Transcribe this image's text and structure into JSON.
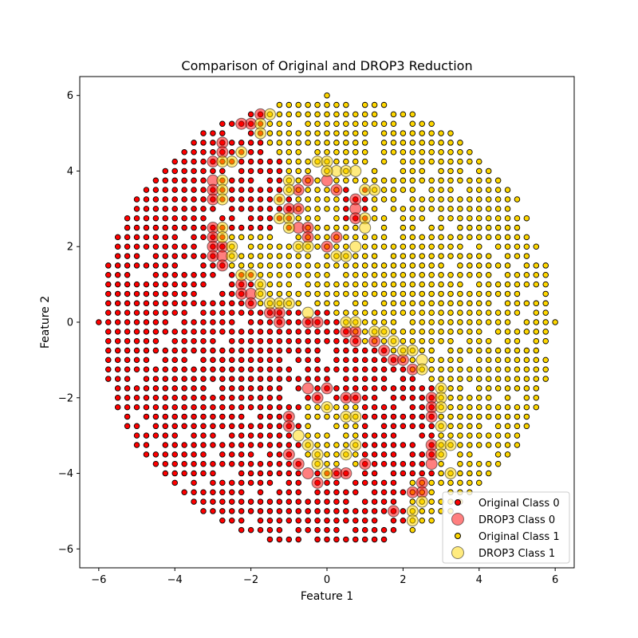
{
  "chart_data": {
    "type": "scatter",
    "title": "Comparison of Original and DROP3 Reduction",
    "xlabel": "Feature 1",
    "ylabel": "Feature 2",
    "xlim": [
      -6.5,
      6.5
    ],
    "ylim": [
      -6.5,
      6.5
    ],
    "xticks": [
      -6,
      -4,
      -2,
      0,
      2,
      4,
      6
    ],
    "yticks": [
      -6,
      -4,
      -2,
      0,
      2,
      4,
      6
    ],
    "grid": false,
    "legend_position": "lower right",
    "grid_step": 0.25,
    "region_radius": 6,
    "series": [
      {
        "name": "Original Class 0",
        "color": "#ff0000",
        "marker": "small circle",
        "class": 0,
        "role": "original"
      },
      {
        "name": "DROP3 Class 0",
        "color": "#ff0000",
        "alpha": 0.5,
        "marker": "large circle",
        "class": 0,
        "role": "drop3"
      },
      {
        "name": "Original Class 1",
        "color": "#ffd700",
        "marker": "small circle",
        "class": 1,
        "role": "original"
      },
      {
        "name": "DROP3 Class 1",
        "color": "#ffd700",
        "alpha": 0.5,
        "marker": "large circle",
        "class": 1,
        "role": "drop3"
      }
    ],
    "drop3_class0_points": [
      [
        -1.75,
        5.5
      ],
      [
        -2,
        5.25
      ],
      [
        -2.25,
        5.25
      ],
      [
        -2.75,
        4.75
      ],
      [
        -2.75,
        4.5
      ],
      [
        -3,
        4.25
      ],
      [
        -3,
        3.75
      ],
      [
        -3,
        3.5
      ],
      [
        -3,
        3.25
      ],
      [
        -0.5,
        3.75
      ],
      [
        -0.75,
        3.5
      ],
      [
        0,
        3.75
      ],
      [
        0.25,
        3.5
      ],
      [
        0.75,
        3.25
      ],
      [
        0.75,
        3.0
      ],
      [
        -1,
        3.0
      ],
      [
        -0.75,
        3.0
      ],
      [
        -0.75,
        2.5
      ],
      [
        -0.5,
        2.5
      ],
      [
        -0.5,
        2.25
      ],
      [
        0.75,
        2.75
      ],
      [
        0.25,
        2.25
      ],
      [
        0,
        2.0
      ],
      [
        -3,
        2.5
      ],
      [
        -3,
        2.25
      ],
      [
        -3,
        2.0
      ],
      [
        -3,
        1.75
      ],
      [
        -2.75,
        2.0
      ],
      [
        -2.75,
        1.75
      ],
      [
        -2.75,
        1.5
      ],
      [
        -2.25,
        1.0
      ],
      [
        -2.25,
        0.75
      ],
      [
        -2,
        0.75
      ],
      [
        -2,
        0.5
      ],
      [
        -1.5,
        0.25
      ],
      [
        -1.25,
        0.25
      ],
      [
        -1.25,
        0.0
      ],
      [
        -0.5,
        0.0
      ],
      [
        -0.25,
        0.0
      ],
      [
        0.5,
        -0.25
      ],
      [
        0.75,
        -0.25
      ],
      [
        0.75,
        -0.5
      ],
      [
        1.25,
        -0.5
      ],
      [
        1.5,
        -0.75
      ],
      [
        1.75,
        -1.0
      ],
      [
        2,
        -1.0
      ],
      [
        2.25,
        -1.25
      ],
      [
        -0.5,
        -1.75
      ],
      [
        -0.25,
        -2.0
      ],
      [
        0,
        -1.75
      ],
      [
        0.5,
        -2.0
      ],
      [
        0.75,
        -2.0
      ],
      [
        2.75,
        -2.0
      ],
      [
        2.75,
        -2.25
      ],
      [
        2.75,
        -2.5
      ],
      [
        -1,
        -2.5
      ],
      [
        -1,
        -2.75
      ],
      [
        -1,
        -3.5
      ],
      [
        -0.75,
        -3.75
      ],
      [
        -0.5,
        -4.0
      ],
      [
        -0.25,
        -4.25
      ],
      [
        0.25,
        -4.0
      ],
      [
        0.5,
        -4.0
      ],
      [
        1,
        -3.75
      ],
      [
        2.75,
        -3.25
      ],
      [
        2.75,
        -3.5
      ],
      [
        2.75,
        -3.75
      ],
      [
        2.5,
        -4.25
      ],
      [
        2.5,
        -4.5
      ],
      [
        2.25,
        -4.5
      ],
      [
        1.75,
        -5.0
      ]
    ],
    "drop3_class1_points": [
      [
        -1.5,
        5.5
      ],
      [
        -1.75,
        5.25
      ],
      [
        -1.75,
        5.0
      ],
      [
        -2.25,
        4.5
      ],
      [
        -2.5,
        4.25
      ],
      [
        -2.75,
        4.25
      ],
      [
        -2.75,
        3.75
      ],
      [
        -2.75,
        3.5
      ],
      [
        -2.75,
        3.25
      ],
      [
        -1,
        3.75
      ],
      [
        -1,
        3.5
      ],
      [
        -1.25,
        3.25
      ],
      [
        -1.25,
        2.75
      ],
      [
        -1,
        2.75
      ],
      [
        -1,
        2.5
      ],
      [
        -0.25,
        4.25
      ],
      [
        0,
        4.25
      ],
      [
        0.25,
        4.0
      ],
      [
        0.5,
        4.0
      ],
      [
        0.75,
        4.0
      ],
      [
        0,
        4.0
      ],
      [
        1,
        3.5
      ],
      [
        1.25,
        3.5
      ],
      [
        1,
        2.75
      ],
      [
        1,
        2.5
      ],
      [
        0.75,
        2.0
      ],
      [
        0.25,
        1.75
      ],
      [
        0.5,
        1.75
      ],
      [
        -0.75,
        2.0
      ],
      [
        -0.5,
        2.0
      ],
      [
        -2.75,
        2.5
      ],
      [
        -2.75,
        2.25
      ],
      [
        -2.5,
        2.0
      ],
      [
        -2.5,
        1.75
      ],
      [
        -2.25,
        1.25
      ],
      [
        -2,
        1.25
      ],
      [
        -1.75,
        1.0
      ],
      [
        -1.75,
        0.75
      ],
      [
        -1.5,
        0.5
      ],
      [
        -1.25,
        0.5
      ],
      [
        -1,
        0.5
      ],
      [
        -0.5,
        0.25
      ],
      [
        0.5,
        0.0
      ],
      [
        0.75,
        0.0
      ],
      [
        1.25,
        -0.25
      ],
      [
        1.5,
        -0.25
      ],
      [
        1.75,
        -0.5
      ],
      [
        2.0,
        -0.75
      ],
      [
        2.25,
        -0.75
      ],
      [
        2.5,
        -1.0
      ],
      [
        2.5,
        -1.25
      ],
      [
        3,
        -1.75
      ],
      [
        3,
        -2.0
      ],
      [
        3,
        -2.25
      ],
      [
        3,
        -2.75
      ],
      [
        0,
        -2.25
      ],
      [
        0.5,
        -2.5
      ],
      [
        0.75,
        -2.5
      ],
      [
        -0.5,
        -3.25
      ],
      [
        -0.25,
        -3.5
      ],
      [
        -0.25,
        -3.75
      ],
      [
        -0.75,
        -3.0
      ],
      [
        0.5,
        -3.5
      ],
      [
        0.75,
        -3.25
      ],
      [
        3,
        -3.25
      ],
      [
        3,
        -3.5
      ],
      [
        3.25,
        -3.25
      ],
      [
        3.25,
        -4.0
      ],
      [
        0,
        -4.0
      ],
      [
        2.5,
        -4.75
      ],
      [
        2.25,
        -5.0
      ],
      [
        2.25,
        -5.25
      ]
    ]
  }
}
